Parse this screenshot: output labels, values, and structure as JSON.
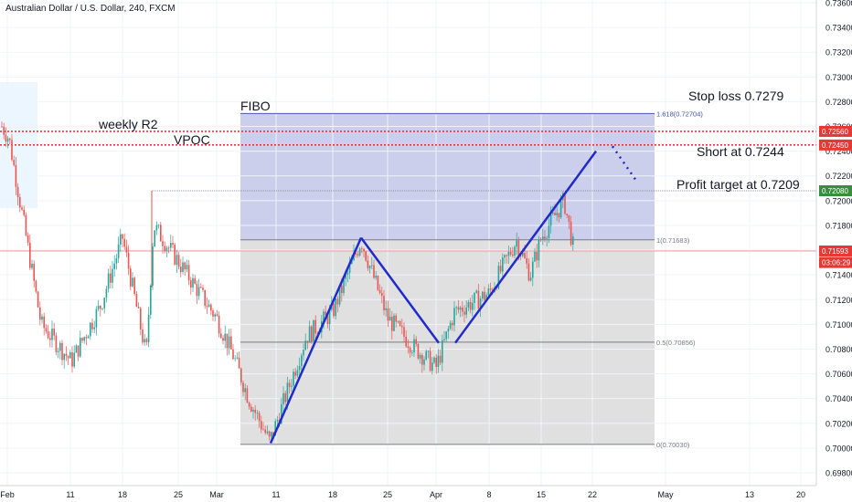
{
  "header": {
    "symbol_title": "Australian Dollar / U.S. Dollar, 240, FXCM"
  },
  "annotations": {
    "fibo": "FIBO",
    "weekly_r2": "weekly R2",
    "vpoc": "VPOC",
    "stop_loss": "Stop loss 0.7279",
    "short_at": "Short at 0.7244",
    "profit_target": "Profit target at 0.7209"
  },
  "chart_data": {
    "type": "candlestick",
    "title": "Australian Dollar / U.S. Dollar, 240, FXCM",
    "ylim": [
      0.697,
      0.736
    ],
    "y_ticks": [
      "0.73600",
      "0.73400",
      "0.73200",
      "0.73000",
      "0.72800",
      "0.72600",
      "0.72400",
      "0.72200",
      "0.72000",
      "0.71800",
      "0.71600",
      "0.71400",
      "0.71200",
      "0.71000",
      "0.70800",
      "0.70600",
      "0.70400",
      "0.70200",
      "0.70000",
      "0.69800"
    ],
    "x_ticks": [
      "Feb",
      "11",
      "18",
      "25",
      "Mar",
      "11",
      "18",
      "25",
      "Apr",
      "8",
      "15",
      "22",
      "May",
      "13",
      "20"
    ],
    "price_labels": [
      {
        "text": "0.72560",
        "value": 0.7256,
        "color": "#e53935"
      },
      {
        "text": "0.72450",
        "value": 0.7245,
        "color": "#e53935"
      },
      {
        "text": "0.72080",
        "value": 0.7208,
        "color": "#388e3c"
      },
      {
        "text": "0.71593",
        "value": 0.71593,
        "color": "#e53935"
      },
      {
        "text": "03:06:29",
        "value": 0.715,
        "color": "#e53935"
      }
    ],
    "horizontal_lines": [
      {
        "value": 0.7256,
        "style": "dotted",
        "color": "#e53935"
      },
      {
        "value": 0.7245,
        "style": "dotted",
        "color": "#e53935"
      },
      {
        "value": 0.71593,
        "style": "thin",
        "color": "#ef9a9a"
      }
    ],
    "fibonacci": {
      "levels": [
        {
          "ratio": "1.618",
          "value": 0.72704,
          "label": "1.618(0.72704)",
          "color": "#3f51b5"
        },
        {
          "ratio": "1",
          "value": 0.71683,
          "label": "1(0.71683)",
          "color": "#787b86"
        },
        {
          "ratio": "0.5",
          "value": 0.70856,
          "label": "0.5(0.70856)",
          "color": "#787b86"
        },
        {
          "ratio": "0",
          "value": 0.7003,
          "label": "0(0.70030)",
          "color": "#787b86"
        }
      ]
    },
    "candles": {
      "up_color": "#26a69a",
      "down_color": "#ef5350",
      "anchors": [
        {
          "label": "Feb",
          "close": 0.726
        },
        {
          "label": "early Feb",
          "close": 0.725
        },
        {
          "label": "early Feb low",
          "close": 0.71
        },
        {
          "label": "11",
          "close": 0.707
        },
        {
          "label": "mid Feb",
          "close": 0.7115
        },
        {
          "label": "18",
          "close": 0.717
        },
        {
          "label": "20 Feb",
          "close": 0.7075
        },
        {
          "label": "23 Feb",
          "close": 0.718
        },
        {
          "label": "25",
          "close": 0.714
        },
        {
          "label": "Mar",
          "close": 0.7105
        },
        {
          "label": "4 Mar",
          "close": 0.7075
        },
        {
          "label": "7 Mar",
          "close": 0.704
        },
        {
          "label": "11",
          "close": 0.7005
        },
        {
          "label": "15 Mar",
          "close": 0.709
        },
        {
          "label": "18",
          "close": 0.711
        },
        {
          "label": "21 Mar",
          "close": 0.7168
        },
        {
          "label": "25",
          "close": 0.7105
        },
        {
          "label": "28 Mar",
          "close": 0.708
        },
        {
          "label": "Apr",
          "close": 0.7065
        },
        {
          "label": "3 Apr",
          "close": 0.711
        },
        {
          "label": "8",
          "close": 0.7125
        },
        {
          "label": "11 Apr",
          "close": 0.7168
        },
        {
          "label": "13 Apr",
          "close": 0.714
        },
        {
          "label": "15",
          "close": 0.717
        },
        {
          "label": "17 Apr",
          "close": 0.72
        },
        {
          "label": "18 Apr",
          "close": 0.7159
        }
      ]
    },
    "drawings": {
      "color": "#1f2bcc",
      "wave_points": [
        {
          "x_label": "10 Mar",
          "value": 0.7004
        },
        {
          "x_label": "21 Mar",
          "value": 0.717
        },
        {
          "x_label": "30 Mar",
          "value": 0.7085
        }
      ],
      "trend_line": [
        {
          "x_label": "1 Apr",
          "value": 0.7085
        },
        {
          "x_label": "21 Apr",
          "value": 0.724
        }
      ],
      "projection_dotted": [
        {
          "x_label": "22 Apr",
          "value": 0.7244
        },
        {
          "x_label": "24 Apr",
          "value": 0.7215
        }
      ]
    }
  }
}
